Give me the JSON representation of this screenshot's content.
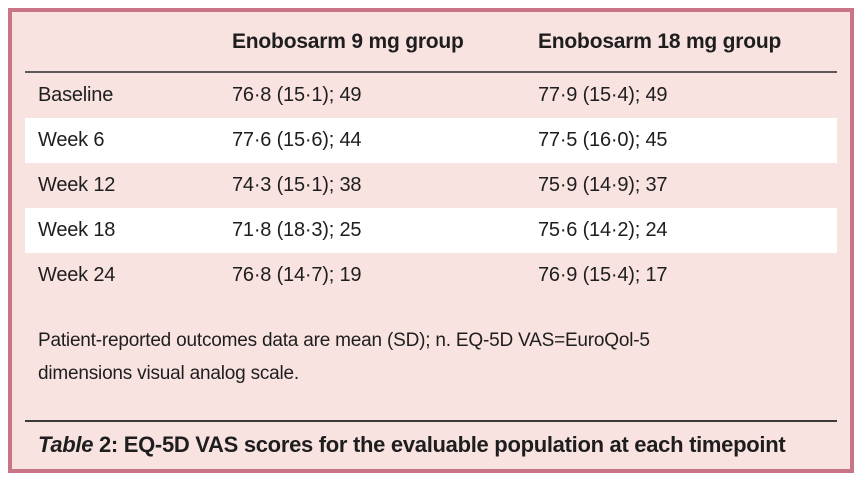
{
  "colors": {
    "frame_border": "#c97487",
    "panel_bg": "#f8e3e1",
    "row_alt_bg": "#ffffff",
    "rule_dark": "#5a5a5a",
    "text_primary": "#1e1e1e"
  },
  "table": {
    "header": {
      "row_label_col": "",
      "col1": "Enobosarm 9 mg group",
      "col2": "Enobosarm 18 mg group"
    },
    "rows": [
      {
        "label": "Baseline",
        "group9": "76·8 (15·1); 49",
        "group18": "77·9 (15·4); 49"
      },
      {
        "label": "Week 6",
        "group9": "77·6 (15·6); 44",
        "group18": "77·5 (16·0); 45"
      },
      {
        "label": "Week 12",
        "group9": "74·3 (15·1); 38",
        "group18": "75·9 (14·9); 37"
      },
      {
        "label": "Week 18",
        "group9": "71·8 (18·3); 25",
        "group18": "75·6 (14·2); 24"
      },
      {
        "label": "Week 24",
        "group9": "76·8 (14·7); 19",
        "group18": "76·9 (15·4); 17"
      }
    ],
    "footnote": "Patient-reported outcomes data are mean (SD); n. EQ-5D VAS=EuroQol-5 dimensions visual analog scale.",
    "caption": {
      "label_italic": "Table",
      "label_number": " 2: ",
      "text": "EQ-5D VAS scores for the evaluable population at each timepoint"
    }
  }
}
